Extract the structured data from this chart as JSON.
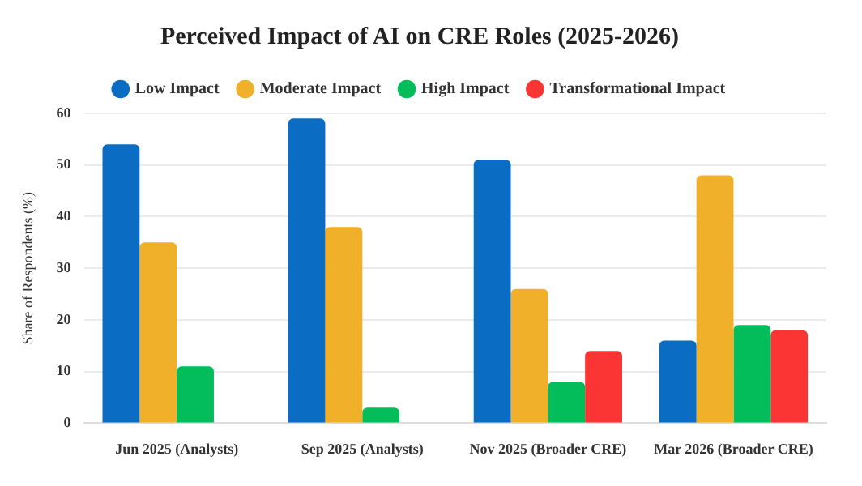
{
  "chart_data": {
    "type": "bar",
    "title": "Perceived Impact of AI on CRE Roles (2025-2026)",
    "ylabel": "Share of Respondents (%)",
    "categories": [
      "Jun 2025 (Analysts)",
      "Sep 2025 (Analysts)",
      "Nov 2025 (Broader CRE)",
      "Mar 2026 (Broader CRE)"
    ],
    "series": [
      {
        "name": "Low Impact",
        "color": "#0b6cc4",
        "values": [
          54,
          59,
          51,
          16
        ]
      },
      {
        "name": "Moderate Impact",
        "color": "#f0b02a",
        "values": [
          35,
          38,
          26,
          48
        ]
      },
      {
        "name": "High Impact",
        "color": "#03bd5b",
        "values": [
          11,
          3,
          8,
          19
        ]
      },
      {
        "name": "Transformational Impact",
        "color": "#fb3434",
        "values": [
          null,
          null,
          14,
          18
        ]
      }
    ],
    "ylim": [
      0,
      60
    ],
    "yticks": [
      0,
      10,
      20,
      30,
      40,
      50,
      60
    ],
    "grid": "y",
    "legend": "top"
  }
}
